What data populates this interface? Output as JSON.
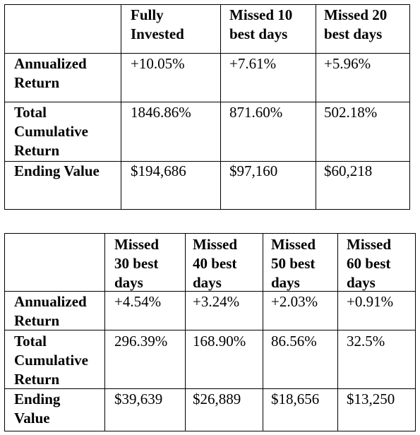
{
  "table1": {
    "headers": [
      [
        "Fully",
        "Invested"
      ],
      [
        "Missed 10",
        "best days"
      ],
      [
        "Missed 20",
        "best days"
      ]
    ],
    "rows": [
      {
        "label": [
          "Annualized",
          "Return"
        ],
        "values": [
          "+10.05%",
          "+7.61%",
          "+5.96%"
        ]
      },
      {
        "label": [
          "Total",
          "Cumulative",
          "Return"
        ],
        "values": [
          "1846.86%",
          "871.60%",
          "502.18%"
        ]
      },
      {
        "label": [
          "Ending Value"
        ],
        "values": [
          "$194,686",
          "$97,160",
          "$60,218"
        ]
      }
    ]
  },
  "table2": {
    "headers": [
      [
        "Missed",
        "30 best",
        "days"
      ],
      [
        "Missed",
        "40 best",
        "days"
      ],
      [
        "Missed",
        "50 best",
        "days"
      ],
      [
        "Missed",
        "60 best",
        "days"
      ]
    ],
    "rows": [
      {
        "label": [
          "Annualized",
          "Return"
        ],
        "values": [
          "+4.54%",
          "+3.24%",
          "+2.03%",
          "+0.91%"
        ]
      },
      {
        "label": [
          "Total",
          "Cumulative",
          "Return"
        ],
        "values": [
          "296.39%",
          "168.90%",
          "86.56%",
          "32.5%"
        ]
      },
      {
        "label": [
          "Ending",
          "Value"
        ],
        "values": [
          "$39,639",
          "$26,889",
          "$18,656",
          "$13,250"
        ]
      }
    ]
  }
}
